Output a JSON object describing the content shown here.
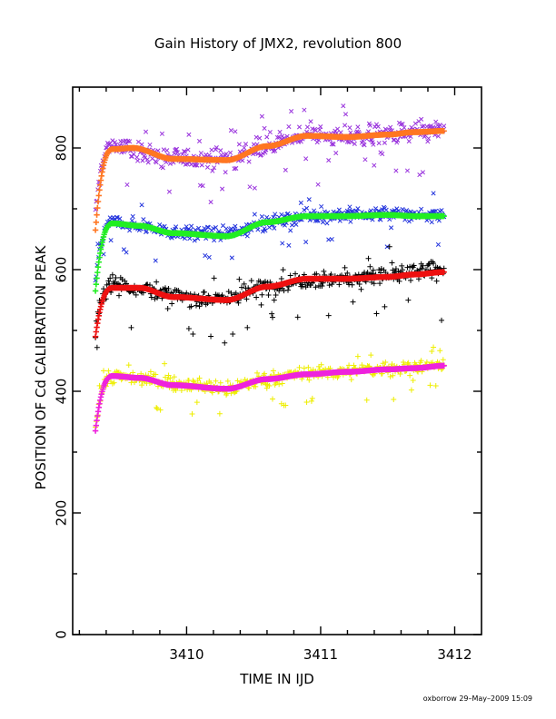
{
  "chart_data": {
    "type": "scatter",
    "title": "Gain History of JMX2, revolution 800",
    "xlabel": "TIME IN IJD",
    "ylabel": "POSITION OF Cd CALIBRATION PEAK",
    "xlim": [
      3409.15,
      3412.2
    ],
    "ylim": [
      0,
      900
    ],
    "x_ticks": [
      3410,
      3411,
      3412
    ],
    "x_tick_labels": [
      "3410",
      "3411",
      "3412"
    ],
    "y_ticks": [
      0,
      200,
      400,
      600,
      800
    ],
    "y_tick_labels": [
      "0",
      "200",
      "400",
      "600",
      "800"
    ],
    "x_minor_step": 0.2,
    "y_minor_step": 100,
    "grid": false,
    "legend": "none",
    "x_range_data": [
      3409.32,
      3411.92
    ],
    "series": [
      {
        "marker": "x",
        "color": "#9933dd",
        "kind": "raw",
        "scatter": 22,
        "start": 690,
        "knots": [
          [
            3409.45,
            805
          ],
          [
            3409.6,
            795
          ],
          [
            3409.9,
            783
          ],
          [
            3410.3,
            783
          ],
          [
            3410.6,
            805
          ],
          [
            3410.9,
            822
          ],
          [
            3411.2,
            818
          ],
          [
            3411.5,
            822
          ],
          [
            3411.7,
            826
          ],
          [
            3411.92,
            830
          ]
        ]
      },
      {
        "marker": "x",
        "color": "#2233dd",
        "kind": "raw",
        "scatter": 15,
        "start": 580,
        "knots": [
          [
            3409.45,
            678
          ],
          [
            3409.65,
            672
          ],
          [
            3409.9,
            662
          ],
          [
            3410.3,
            658
          ],
          [
            3410.6,
            678
          ],
          [
            3410.9,
            688
          ],
          [
            3411.2,
            690
          ],
          [
            3411.5,
            692
          ],
          [
            3411.7,
            690
          ],
          [
            3411.92,
            690
          ]
        ]
      },
      {
        "marker": "+",
        "color": "#000000",
        "kind": "raw",
        "scatter": 20,
        "start": 500,
        "knots": [
          [
            3409.45,
            578
          ],
          [
            3409.65,
            570
          ],
          [
            3409.9,
            555
          ],
          [
            3410.3,
            553
          ],
          [
            3410.6,
            572
          ],
          [
            3410.9,
            585
          ],
          [
            3411.2,
            585
          ],
          [
            3411.5,
            590
          ],
          [
            3411.7,
            595
          ],
          [
            3411.92,
            600
          ]
        ]
      },
      {
        "marker": "+",
        "color": "#eeee00",
        "kind": "raw",
        "scatter": 15,
        "start": 345,
        "knots": [
          [
            3409.45,
            425
          ],
          [
            3409.65,
            422
          ],
          [
            3409.9,
            412
          ],
          [
            3410.3,
            405
          ],
          [
            3410.6,
            420
          ],
          [
            3410.9,
            430
          ],
          [
            3411.2,
            432
          ],
          [
            3411.5,
            437
          ],
          [
            3411.7,
            440
          ],
          [
            3411.92,
            445
          ]
        ]
      },
      {
        "marker": "+",
        "color": "#ff7722",
        "kind": "fit",
        "scatter": 0,
        "start": 665,
        "knots": [
          [
            3409.45,
            798
          ],
          [
            3409.6,
            800
          ],
          [
            3409.9,
            782
          ],
          [
            3410.3,
            780
          ],
          [
            3410.6,
            803
          ],
          [
            3410.9,
            820
          ],
          [
            3411.2,
            818
          ],
          [
            3411.5,
            822
          ],
          [
            3411.7,
            826
          ],
          [
            3411.92,
            828
          ]
        ]
      },
      {
        "marker": "+",
        "color": "#22ee22",
        "kind": "fit",
        "scatter": 0,
        "start": 565,
        "knots": [
          [
            3409.45,
            676
          ],
          [
            3409.65,
            672
          ],
          [
            3409.9,
            660
          ],
          [
            3410.3,
            655
          ],
          [
            3410.6,
            678
          ],
          [
            3410.9,
            688
          ],
          [
            3411.2,
            688
          ],
          [
            3411.5,
            690
          ],
          [
            3411.7,
            688
          ],
          [
            3411.92,
            688
          ]
        ]
      },
      {
        "marker": "+",
        "color": "#ee1111",
        "kind": "fit",
        "scatter": 0,
        "start": 490,
        "knots": [
          [
            3409.45,
            570
          ],
          [
            3409.65,
            570
          ],
          [
            3409.9,
            555
          ],
          [
            3410.3,
            550
          ],
          [
            3410.6,
            572
          ],
          [
            3410.9,
            585
          ],
          [
            3411.2,
            585
          ],
          [
            3411.5,
            588
          ],
          [
            3411.7,
            592
          ],
          [
            3411.92,
            596
          ]
        ]
      },
      {
        "marker": "+",
        "color": "#ee22dd",
        "kind": "fit",
        "scatter": 0,
        "start": 335,
        "knots": [
          [
            3409.45,
            425
          ],
          [
            3409.65,
            422
          ],
          [
            3409.9,
            410
          ],
          [
            3410.3,
            404
          ],
          [
            3410.6,
            420
          ],
          [
            3410.9,
            428
          ],
          [
            3411.2,
            432
          ],
          [
            3411.5,
            436
          ],
          [
            3411.7,
            438
          ],
          [
            3411.92,
            442
          ]
        ]
      }
    ]
  },
  "footer": "oxborrow 29–May–2009 15:09"
}
